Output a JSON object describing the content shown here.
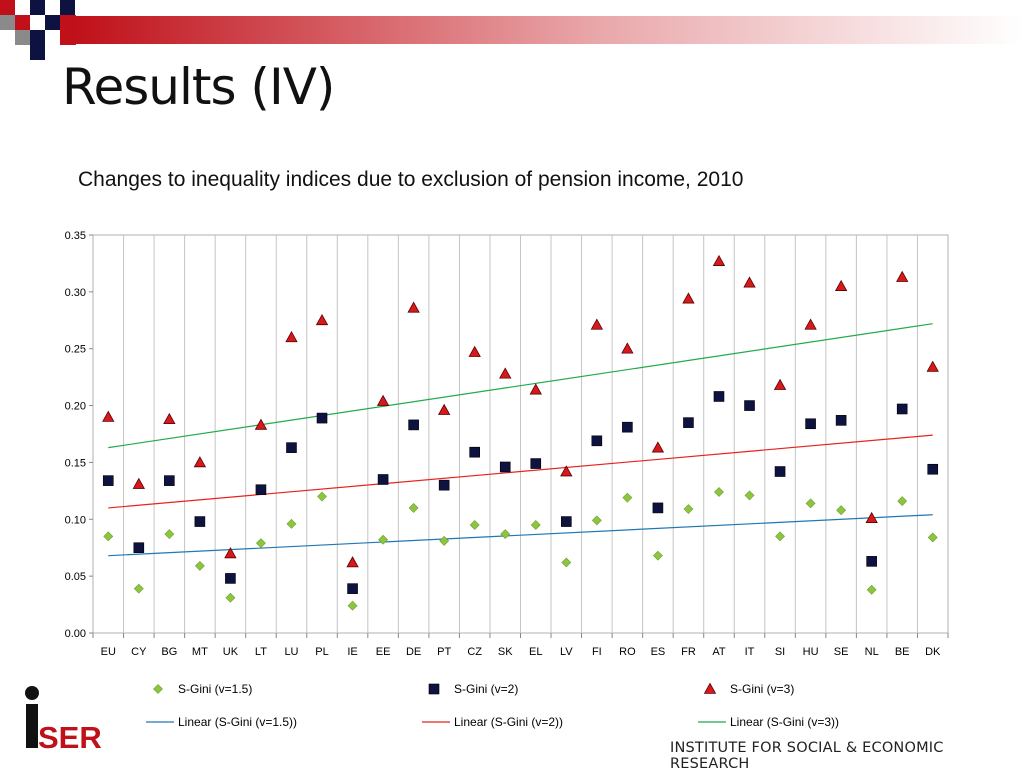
{
  "slide": {
    "title": "Results (IV)",
    "institute": "INSTITUTE FOR SOCIAL & ECONOMIC RESEARCH",
    "logo_text": "iSER"
  },
  "colors": {
    "band_red": "#c0111a",
    "band_navy": "#0d1240",
    "series_green": "#8cc63f",
    "series_navy": "#0d1240",
    "series_red": "#d7191c",
    "trend_blue": "#1f77b4",
    "trend_red": "#e8221e",
    "trend_green": "#22aa4a"
  },
  "chart_data": {
    "type": "scatter",
    "title": "Changes to inequality indices due to exclusion of pension income, 2010",
    "xlabel": "",
    "ylabel": "",
    "ylim": [
      0,
      0.35
    ],
    "yticks": [
      "0.00",
      "0.05",
      "0.10",
      "0.15",
      "0.20",
      "0.25",
      "0.30",
      "0.35"
    ],
    "grid": "vertical",
    "legend_position": "bottom",
    "categories": [
      "EU",
      "CY",
      "BG",
      "MT",
      "UK",
      "LT",
      "LU",
      "PL",
      "IE",
      "EE",
      "DE",
      "PT",
      "CZ",
      "SK",
      "EL",
      "LV",
      "FI",
      "RO",
      "ES",
      "FR",
      "AT",
      "IT",
      "SI",
      "HU",
      "SE",
      "NL",
      "BE",
      "DK"
    ],
    "series": [
      {
        "name": "S-Gini (v=1.5)",
        "marker": "diamond",
        "color": "#8cc63f",
        "values": [
          0.085,
          0.039,
          0.087,
          0.059,
          0.031,
          0.079,
          0.096,
          0.12,
          0.024,
          0.082,
          0.11,
          0.081,
          0.095,
          0.087,
          0.095,
          0.062,
          0.099,
          0.119,
          0.068,
          0.109,
          0.124,
          0.121,
          0.085,
          0.114,
          0.108,
          0.038,
          0.116,
          0.084
        ]
      },
      {
        "name": "S-Gini (v=2)",
        "marker": "square",
        "color": "#0d1240",
        "values": [
          0.134,
          0.075,
          0.134,
          0.098,
          0.048,
          0.126,
          0.163,
          0.189,
          0.039,
          0.135,
          0.183,
          0.13,
          0.159,
          0.146,
          0.149,
          0.098,
          0.169,
          0.181,
          0.11,
          0.185,
          0.208,
          0.2,
          0.142,
          0.184,
          0.187,
          0.063,
          0.197,
          0.144
        ]
      },
      {
        "name": "S-Gini (v=3)",
        "marker": "triangle",
        "color": "#d7191c",
        "values": [
          0.19,
          0.131,
          0.188,
          0.15,
          0.07,
          0.183,
          0.26,
          0.275,
          0.062,
          0.204,
          0.286,
          0.196,
          0.247,
          0.228,
          0.214,
          0.142,
          0.271,
          0.25,
          0.163,
          0.294,
          0.327,
          0.308,
          0.218,
          0.271,
          0.305,
          0.101,
          0.313,
          0.234
        ]
      }
    ],
    "trendlines": [
      {
        "name": "Linear (S-Gini (v=1.5))",
        "color": "#1f77b4",
        "start": 0.068,
        "end": 0.104
      },
      {
        "name": "Linear (S-Gini (v=2))",
        "color": "#e8221e",
        "start": 0.11,
        "end": 0.174
      },
      {
        "name": "Linear (S-Gini (v=3))",
        "color": "#22aa4a",
        "start": 0.163,
        "end": 0.272
      }
    ]
  }
}
